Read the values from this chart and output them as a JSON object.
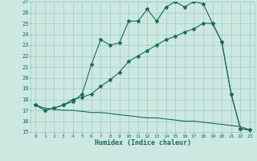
{
  "title": "",
  "xlabel": "Humidex (Indice chaleur)",
  "ylabel": "",
  "bg_color": "#cce8e0",
  "grid_color": "#9ecdc4",
  "line_color": "#1a6b5a",
  "xlim": [
    -0.5,
    23.5
  ],
  "ylim": [
    15,
    27
  ],
  "yticks": [
    15,
    16,
    17,
    18,
    19,
    20,
    21,
    22,
    23,
    24,
    25,
    26,
    27
  ],
  "xticks": [
    0,
    1,
    2,
    3,
    4,
    5,
    6,
    7,
    8,
    9,
    10,
    11,
    12,
    13,
    14,
    15,
    16,
    17,
    18,
    19,
    20,
    21,
    22,
    23
  ],
  "line1_x": [
    0,
    1,
    2,
    3,
    4,
    5,
    6,
    7,
    8,
    9,
    10,
    11,
    12,
    13,
    14,
    15,
    16,
    17,
    18,
    19,
    20,
    21,
    22,
    23
  ],
  "line1_y": [
    17.5,
    17.0,
    17.2,
    17.5,
    17.8,
    18.5,
    21.2,
    23.5,
    23.0,
    23.2,
    25.2,
    25.2,
    26.3,
    25.2,
    26.5,
    27.0,
    26.5,
    27.0,
    26.8,
    25.0,
    23.3,
    18.5,
    15.3,
    15.2
  ],
  "line2_x": [
    0,
    1,
    2,
    3,
    4,
    5,
    6,
    7,
    8,
    9,
    10,
    11,
    12,
    13,
    14,
    15,
    16,
    17,
    18,
    19,
    20,
    21,
    22,
    23
  ],
  "line2_y": [
    17.5,
    17.0,
    17.2,
    17.5,
    18.0,
    18.2,
    18.5,
    19.2,
    19.8,
    20.5,
    21.5,
    22.0,
    22.5,
    23.0,
    23.5,
    23.8,
    24.2,
    24.5,
    25.0,
    25.0,
    23.3,
    18.5,
    15.3,
    15.2
  ],
  "line3_x": [
    0,
    1,
    2,
    3,
    4,
    5,
    6,
    7,
    8,
    9,
    10,
    11,
    12,
    13,
    14,
    15,
    16,
    17,
    18,
    19,
    20,
    21,
    22,
    23
  ],
  "line3_y": [
    17.5,
    17.2,
    17.1,
    17.0,
    17.0,
    16.9,
    16.8,
    16.8,
    16.7,
    16.6,
    16.5,
    16.4,
    16.3,
    16.3,
    16.2,
    16.1,
    16.0,
    16.0,
    15.9,
    15.8,
    15.7,
    15.6,
    15.5,
    15.2
  ],
  "marker": "*",
  "markersize": 3,
  "linewidth": 0.8
}
